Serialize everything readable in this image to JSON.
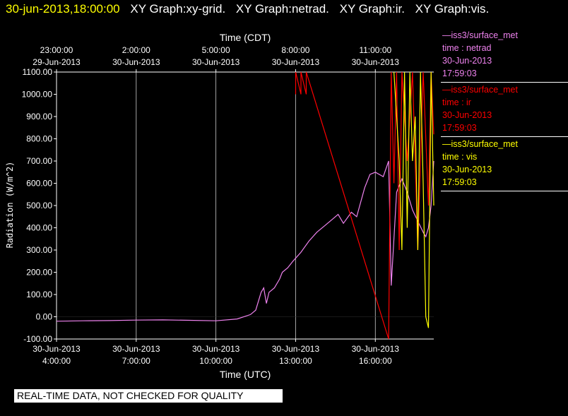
{
  "header": {
    "timestamp": "30-jun-2013,18:00:00",
    "graph_titles": [
      "XY Graph:xy-grid.",
      "XY Graph:netrad.",
      "XY Graph:ir.",
      "XY Graph:vis."
    ]
  },
  "colors": {
    "netrad": "#ee82ee",
    "ir": "#ff0000",
    "vis": "#ffff00",
    "timestamp": "#ffff00"
  },
  "banner": "REAL-TIME DATA, NOT CHECKED FOR QUALITY",
  "legend": [
    {
      "source": "—iss3/surface_met",
      "field": "time : netrad",
      "date": "30-Jun-2013",
      "time": "17:59:03",
      "color": "#ee82ee"
    },
    {
      "source": "—iss3/surface_met",
      "field": "time : ir",
      "date": "30-Jun-2013",
      "time": "17:59:03",
      "color": "#ff0000"
    },
    {
      "source": "—iss3/surface_met",
      "field": "time : vis",
      "date": "30-Jun-2013",
      "time": "17:59:03",
      "color": "#ffff00"
    }
  ],
  "chart_data": {
    "type": "line",
    "ylabel": "Radiation (W/m^2)",
    "xlabel_bottom": "Time (UTC)",
    "xlabel_top": "Time (CDT)",
    "ylim": [
      -100,
      1100
    ],
    "xlim_hours_utc": [
      4,
      18.2
    ],
    "yticks": [
      "-100.00",
      "0.00",
      "100.00",
      "200.00",
      "300.00",
      "400.00",
      "500.00",
      "600.00",
      "700.00",
      "800.00",
      "900.00",
      "1000.00",
      "1100.00"
    ],
    "xticks_bottom": [
      {
        "date": "30-Jun-2013",
        "time": "4:00:00"
      },
      {
        "date": "30-Jun-2013",
        "time": "7:00:00"
      },
      {
        "date": "30-Jun-2013",
        "time": "10:00:00"
      },
      {
        "date": "30-Jun-2013",
        "time": "13:00:00"
      },
      {
        "date": "30-Jun-2013",
        "time": "16:00:00"
      }
    ],
    "xticks_top": [
      {
        "time": "23:00:00",
        "date": "29-Jun-2013"
      },
      {
        "time": "2:00:00",
        "date": "30-Jun-2013"
      },
      {
        "time": "5:00:00",
        "date": "30-Jun-2013"
      },
      {
        "time": "8:00:00",
        "date": "30-Jun-2013"
      },
      {
        "time": "11:00:00",
        "date": "30-Jun-2013"
      }
    ],
    "grid": true,
    "series": [
      {
        "name": "netrad",
        "x": [
          4.0,
          5.0,
          6.0,
          7.0,
          8.0,
          9.0,
          10.0,
          10.8,
          11.3,
          11.5,
          11.7,
          11.8,
          11.9,
          12.0,
          12.2,
          12.4,
          12.5,
          12.7,
          12.9,
          13.2,
          13.5,
          13.8,
          14.1,
          14.4,
          14.6,
          14.8,
          15.1,
          15.3,
          15.6,
          15.8,
          16.0,
          16.3,
          16.5,
          16.6,
          16.8,
          17.0,
          17.2,
          17.4,
          17.6,
          17.8,
          17.9,
          18.0,
          18.1,
          18.2
        ],
        "y": [
          -20,
          -18,
          -17,
          -15,
          -14,
          -16,
          -18,
          -10,
          10,
          30,
          110,
          130,
          60,
          110,
          130,
          170,
          200,
          220,
          250,
          290,
          340,
          380,
          410,
          440,
          460,
          420,
          470,
          450,
          580,
          640,
          650,
          630,
          700,
          140,
          560,
          620,
          560,
          480,
          430,
          380,
          360,
          400,
          500,
          700
        ]
      },
      {
        "name": "ir",
        "x": [
          13.0,
          13.0,
          13.2,
          13.2,
          13.4,
          13.4,
          16.5,
          16.6,
          16.7,
          16.8,
          16.9,
          17.0,
          17.2,
          17.4,
          17.6,
          17.8,
          18.0,
          18.1,
          18.2
        ],
        "y": [
          1000,
          1100,
          1000,
          1100,
          1000,
          1100,
          -100,
          1100,
          600,
          1100,
          300,
          1100,
          700,
          1100,
          300,
          1100,
          500,
          1100,
          820
        ]
      },
      {
        "name": "vis",
        "x": [
          16.7,
          16.8,
          16.9,
          17.0,
          17.1,
          17.2,
          17.3,
          17.4,
          17.5,
          17.6,
          17.7,
          17.8,
          17.9,
          18.0,
          18.1,
          18.2
        ],
        "y": [
          1100,
          900,
          700,
          300,
          1100,
          400,
          1100,
          700,
          900,
          300,
          1100,
          600,
          0,
          -50,
          1100,
          500
        ]
      }
    ]
  }
}
